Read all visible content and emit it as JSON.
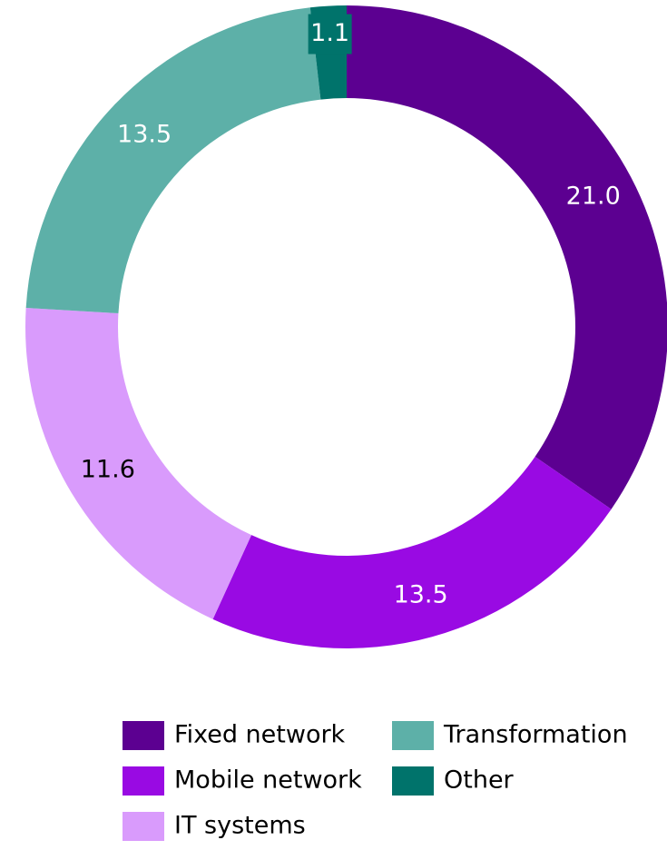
{
  "chart_data": {
    "type": "donut",
    "categories": [
      "Fixed network",
      "Mobile network",
      "IT systems",
      "Transformation",
      "Other"
    ],
    "values": [
      21.0,
      13.5,
      11.6,
      13.5,
      1.1
    ],
    "value_labels": [
      "21.0",
      "13.5",
      "11.6",
      "13.5",
      "1.1"
    ],
    "colors": [
      "#5c0091",
      "#990ae3",
      "#d99bfc",
      "#5db0a8",
      "#00736b"
    ],
    "legend": "bottom"
  }
}
